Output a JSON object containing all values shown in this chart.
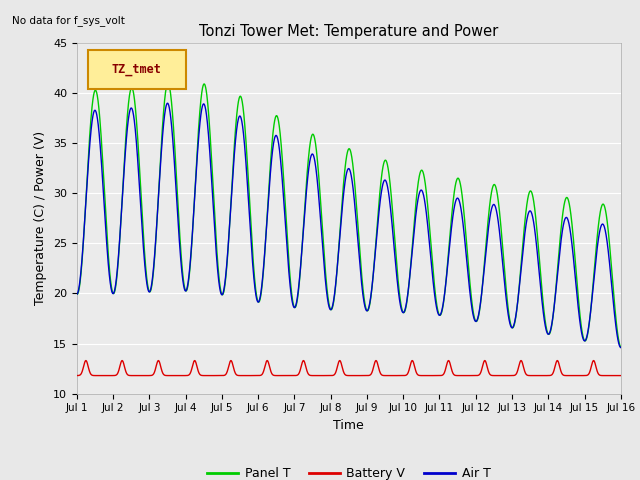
{
  "title": "Tonzi Tower Met: Temperature and Power",
  "no_data_text": "No data for f_sys_volt",
  "legend_box_text": "TZ_tmet",
  "xlabel": "Time",
  "ylabel": "Temperature (C) / Power (V)",
  "ylim": [
    10,
    45
  ],
  "xlim": [
    0,
    15
  ],
  "xtick_labels": [
    "Jul 1",
    "Jul 2",
    "Jul 3",
    "Jul 4",
    "Jul 5",
    "Jul 6",
    "Jul 7",
    "Jul 8",
    "Jul 9",
    "Jul 10",
    "Jul 11",
    "Jul 12",
    "Jul 13",
    "Jul 14",
    "Jul 15",
    "Jul 16"
  ],
  "ytick_values": [
    10,
    15,
    20,
    25,
    30,
    35,
    40,
    45
  ],
  "panel_color": "#00CC00",
  "battery_color": "#DD0000",
  "air_color": "#0000CC",
  "fig_bg": "#E8E8E8",
  "plot_bg": "#EBEBEB",
  "legend_panel": "Panel T",
  "legend_battery": "Battery V",
  "legend_air": "Air T"
}
